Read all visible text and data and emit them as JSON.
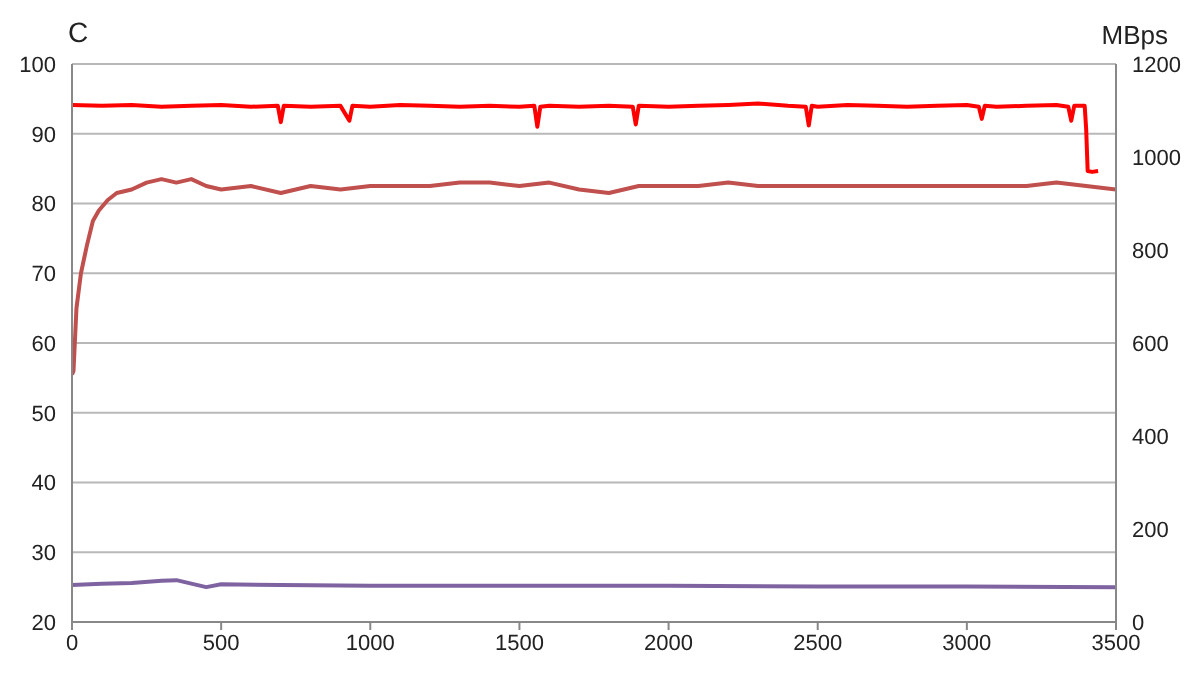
{
  "chart_data": {
    "type": "line",
    "ylabel": "C",
    "y2label": "MBps",
    "xlim": [
      0,
      3500
    ],
    "xticks": [
      0,
      500,
      1000,
      1500,
      2000,
      2500,
      3000,
      3500
    ],
    "ylim": [
      20,
      100
    ],
    "yticks": [
      20,
      30,
      40,
      50,
      60,
      70,
      80,
      90,
      100
    ],
    "y2lim": [
      0,
      1200
    ],
    "y2ticks": [
      0,
      200,
      400,
      600,
      800,
      1000,
      1200
    ],
    "grid": "y",
    "marker": "none",
    "line_style": "solid",
    "series": [
      {
        "color": "#ff0000",
        "axis": "y2",
        "x": [
          0,
          100,
          200,
          300,
          400,
          500,
          600,
          690,
          700,
          710,
          800,
          900,
          930,
          940,
          1000,
          1100,
          1200,
          1300,
          1400,
          1500,
          1550,
          1560,
          1570,
          1600,
          1700,
          1800,
          1880,
          1890,
          1900,
          2000,
          2100,
          2200,
          2300,
          2400,
          2460,
          2470,
          2480,
          2500,
          2600,
          2700,
          2800,
          2900,
          3000,
          3040,
          3050,
          3060,
          3100,
          3200,
          3300,
          3340,
          3350,
          3360,
          3395,
          3400,
          3405,
          3420,
          3440
        ],
        "values": [
          1112,
          1110,
          1112,
          1108,
          1110,
          1112,
          1108,
          1110,
          1075,
          1110,
          1108,
          1110,
          1078,
          1110,
          1108,
          1112,
          1110,
          1108,
          1110,
          1108,
          1110,
          1065,
          1108,
          1110,
          1108,
          1110,
          1108,
          1070,
          1110,
          1108,
          1110,
          1112,
          1115,
          1110,
          1108,
          1068,
          1110,
          1108,
          1112,
          1110,
          1108,
          1110,
          1112,
          1108,
          1082,
          1110,
          1108,
          1110,
          1112,
          1108,
          1078,
          1110,
          1110,
          1060,
          970,
          968,
          970
        ]
      },
      {
        "color": "#c0504d",
        "axis": "y",
        "x": [
          0,
          5,
          15,
          30,
          50,
          70,
          90,
          120,
          150,
          200,
          250,
          300,
          350,
          400,
          450,
          500,
          600,
          700,
          800,
          900,
          1000,
          1100,
          1200,
          1300,
          1400,
          1500,
          1600,
          1700,
          1800,
          1900,
          2000,
          2100,
          2200,
          2300,
          2400,
          2500,
          2600,
          2700,
          2800,
          2900,
          3000,
          3100,
          3200,
          3300,
          3400,
          3500
        ],
        "values": [
          55.5,
          56,
          65,
          70,
          74,
          77.5,
          79,
          80.5,
          81.5,
          82,
          83,
          83.5,
          83,
          83.5,
          82.5,
          82,
          82.5,
          81.5,
          82.5,
          82,
          82.5,
          82.5,
          82.5,
          83,
          83,
          82.5,
          83,
          82,
          81.5,
          82.5,
          82.5,
          82.5,
          83,
          82.5,
          82.5,
          82.5,
          82.5,
          82.5,
          82.5,
          82.5,
          82.5,
          82.5,
          82.5,
          83,
          82.5,
          82
        ]
      },
      {
        "color": "#7f63a1",
        "axis": "y",
        "x": [
          0,
          100,
          200,
          300,
          350,
          400,
          450,
          500,
          700,
          1000,
          1500,
          2000,
          2500,
          3000,
          3500
        ],
        "values": [
          25.3,
          25.5,
          25.6,
          25.9,
          26,
          25.5,
          25,
          25.4,
          25.3,
          25.2,
          25.2,
          25.2,
          25.1,
          25.1,
          25
        ]
      }
    ]
  }
}
